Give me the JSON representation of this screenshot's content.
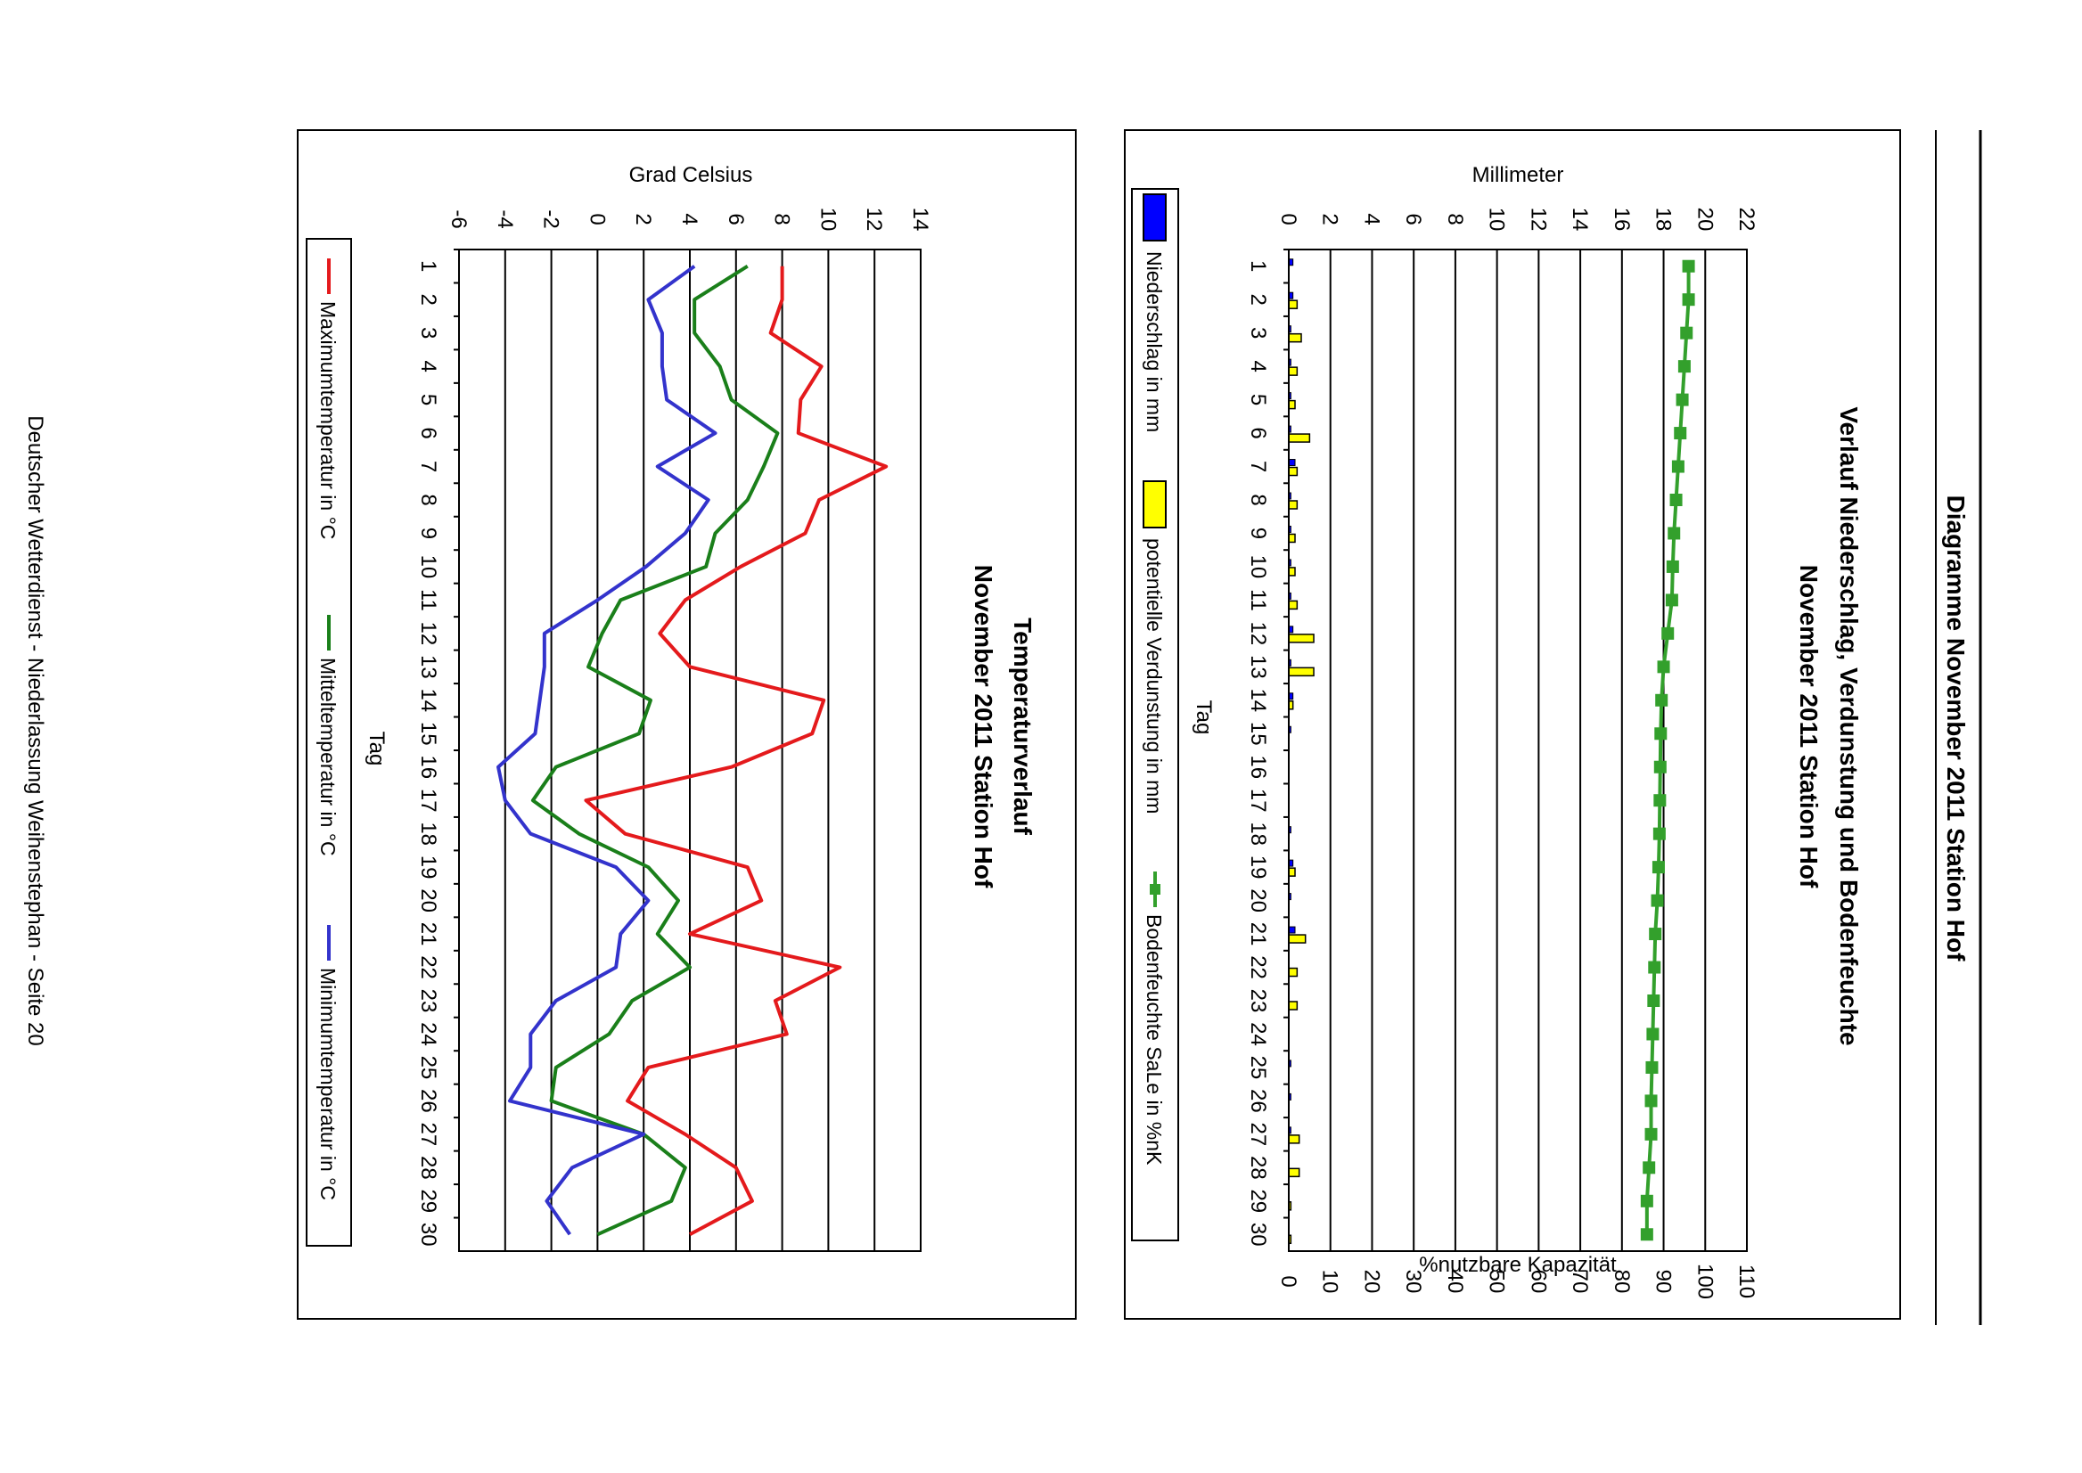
{
  "page": {
    "header_title": "Diagramme November 2011 Station Hof",
    "footer": "Deutscher Wetterdienst - Niederlassung Weihenstephan - Seite 20"
  },
  "chart_data": [
    {
      "type": "bar",
      "title": "Verlauf Niederschlag, Verdunstung und Bodenfeuchte",
      "subtitle": "November 2011 Station Hof",
      "xlabel": "Tag",
      "ylabel": "Millimeter",
      "y2label": "%nutzbare Kapazität",
      "ylim": [
        0,
        22
      ],
      "y2lim": [
        0,
        110
      ],
      "yticks": [
        "0",
        "2",
        "4",
        "6",
        "8",
        "10",
        "12",
        "14",
        "16",
        "18",
        "20",
        "22"
      ],
      "y2ticks": [
        "0",
        "10",
        "20",
        "30",
        "40",
        "50",
        "60",
        "70",
        "80",
        "90",
        "100",
        "110"
      ],
      "categories": [
        "1",
        "2",
        "3",
        "4",
        "5",
        "6",
        "7",
        "8",
        "9",
        "10",
        "11",
        "12",
        "13",
        "14",
        "15",
        "16",
        "17",
        "18",
        "19",
        "20",
        "21",
        "22",
        "23",
        "24",
        "25",
        "26",
        "27",
        "28",
        "29",
        "30"
      ],
      "legend_position": "bottom",
      "grid": true,
      "series": [
        {
          "name": "Niederschlag in mm",
          "type": "bar",
          "color": "#0000ff",
          "values": [
            0.2,
            0.2,
            0.1,
            0.1,
            0.1,
            0.1,
            0.3,
            0.1,
            0.1,
            0.1,
            0.1,
            0.2,
            0.1,
            0.2,
            0.1,
            0,
            0,
            0.1,
            0.2,
            0.1,
            0.3,
            0,
            0,
            0,
            0.1,
            0.1,
            0.1,
            0,
            0,
            0
          ]
        },
        {
          "name": "potentielle Verdunstung in mm",
          "type": "bar",
          "color": "#ffff00",
          "values": [
            0,
            0.4,
            0.6,
            0.4,
            0.3,
            1.0,
            0.4,
            0.4,
            0.3,
            0.3,
            0.4,
            1.2,
            1.2,
            0.2,
            0,
            0,
            0,
            0,
            0.3,
            0,
            0.8,
            0.4,
            0.4,
            0,
            0,
            0,
            0.5,
            0.5,
            0.1,
            0.1
          ]
        },
        {
          "name": "Bodenfeuchte SaLe in %nK",
          "type": "line",
          "axis": "right",
          "color": "#33a02c",
          "values": [
            96,
            96,
            95.5,
            95,
            94.5,
            94,
            93.5,
            93,
            92.5,
            92.2,
            92,
            91,
            90,
            89.5,
            89.3,
            89.2,
            89.1,
            89,
            88.8,
            88.5,
            88,
            87.8,
            87.6,
            87.4,
            87.2,
            87,
            87,
            86.5,
            86,
            86
          ]
        }
      ]
    },
    {
      "type": "line",
      "title": "Temperaturverlauf",
      "subtitle": "November 2011 Station Hof",
      "xlabel": "Tag",
      "ylabel": "Grad Celsius",
      "ylim": [
        -6,
        14
      ],
      "yticks": [
        "-6",
        "-4",
        "-2",
        "0",
        "2",
        "4",
        "6",
        "8",
        "10",
        "12",
        "14"
      ],
      "categories": [
        "1",
        "2",
        "3",
        "4",
        "5",
        "6",
        "7",
        "8",
        "9",
        "10",
        "11",
        "12",
        "13",
        "14",
        "15",
        "16",
        "17",
        "18",
        "19",
        "20",
        "21",
        "22",
        "23",
        "24",
        "25",
        "26",
        "27",
        "28",
        "29",
        "30"
      ],
      "legend_position": "bottom",
      "grid": true,
      "series": [
        {
          "name": "Maximumtemperatur in °C",
          "color": "#e41a1c",
          "values": [
            8,
            8,
            7.5,
            9.7,
            8.8,
            8.7,
            12.5,
            9.6,
            9,
            6.2,
            3.8,
            2.7,
            4,
            9.8,
            9.3,
            5.8,
            -0.5,
            1.2,
            6.5,
            7.1,
            4,
            10.5,
            7.7,
            8.2,
            2.2,
            1.3,
            3.8,
            6,
            6.7,
            4
          ]
        },
        {
          "name": "Mitteltemperatur in °C",
          "color": "#1a7f1a",
          "values": [
            6.5,
            4.2,
            4.2,
            5.3,
            5.8,
            7.8,
            7.2,
            6.5,
            5.1,
            4.7,
            1,
            0.2,
            -0.4,
            2.3,
            1.8,
            -1.8,
            -2.8,
            -0.8,
            2.2,
            3.5,
            2.6,
            4,
            1.5,
            0.5,
            -1.8,
            -2,
            2,
            3.8,
            3.2,
            0
          ]
        },
        {
          "name": "Minimumtemperatur in °C",
          "color": "#3333cc",
          "values": [
            4.2,
            2.2,
            2.8,
            2.8,
            3,
            5.1,
            2.6,
            4.8,
            3.8,
            2.1,
            0,
            -2.3,
            -2.3,
            -2.5,
            -2.7,
            -4.3,
            -4,
            -2.9,
            0.8,
            2.2,
            1,
            0.8,
            -1.8,
            -2.9,
            -2.9,
            -3.8,
            2,
            -1.1,
            -2.2,
            -1.2
          ]
        }
      ]
    }
  ]
}
